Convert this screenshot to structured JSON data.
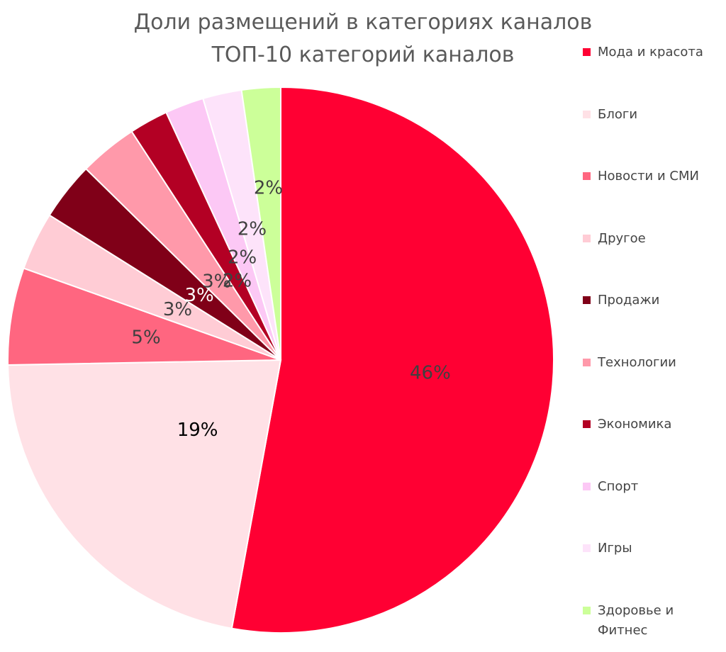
{
  "chart_data": {
    "type": "pie",
    "title": "Доли размещений в категориях каналов",
    "subtitle": "ТОП-10 категорий каналов",
    "categories": [
      "Мода и красота",
      "Блоги",
      "Новости и СМИ",
      "Другое",
      "Продажи",
      "Технологии",
      "Экономика",
      "Спорт",
      "Игры",
      "Здоровье и Фитнес"
    ],
    "values": [
      46,
      19,
      5,
      3,
      3,
      3,
      2,
      2,
      2,
      2
    ],
    "data_labels": [
      "46%",
      "19%",
      "5%",
      "3%",
      "3%",
      "3%",
      "2%",
      "2%",
      "2%",
      "2%"
    ],
    "colors": [
      "#ff0033",
      "#ffe1e6",
      "#ff6680",
      "#ffccd5",
      "#800018",
      "#ff99aa",
      "#b30024",
      "#fcc8f5",
      "#fde3fa",
      "#ccff99"
    ],
    "label_colors": [
      "#404040",
      "#000000",
      "#404040",
      "#404040",
      "#ffffff",
      "#404040",
      "#404040",
      "#404040",
      "#404040",
      "#404040"
    ],
    "legend_position": "right"
  }
}
